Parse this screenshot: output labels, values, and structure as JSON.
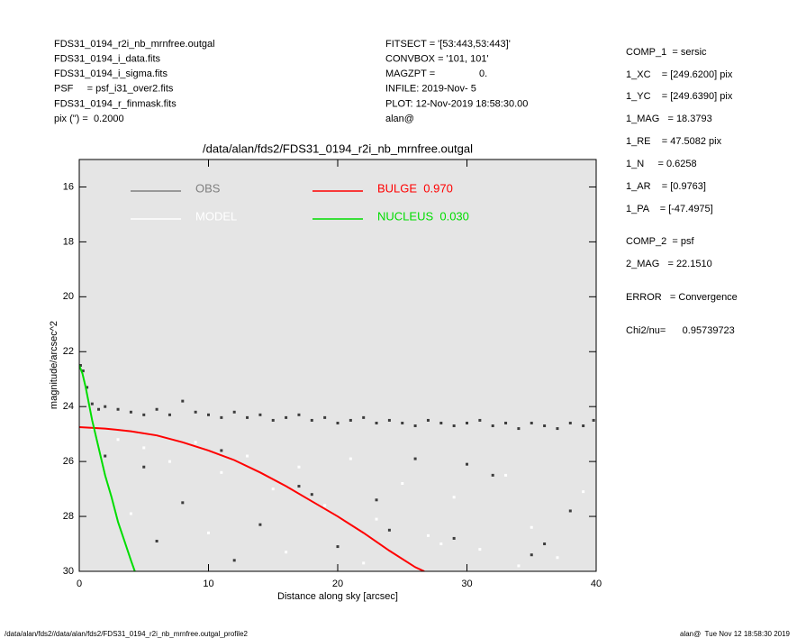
{
  "header": {
    "left": [
      "FDS31_0194_r2i_nb_mrnfree.outgal",
      "FDS31_0194_i_data.fits",
      "FDS31_0194_i_sigma.fits",
      "PSF     = psf_i31_over2.fits",
      "FDS31_0194_r_finmask.fits",
      "pix (\") =  0.2000"
    ],
    "middle": [
      "FITSECT = '[53:443,53:443]'",
      "CONVBOX = '101, 101'",
      "MAGZPT =                0.",
      "INFILE: 2019-Nov- 5",
      "PLOT: 12-Nov-2019 18:58:30.00",
      "alan@"
    ]
  },
  "info": [
    "COMP_1  = sersic",
    "1_XC    = [249.6200] pix",
    "1_YC    = [249.6390] pix",
    "1_MAG   = 18.3793",
    "1_RE    = 47.5082 pix",
    "1_N     = 0.6258",
    "1_AR    = [0.9763]",
    "1_PA    = [-47.4975]",
    "COMP_2  = psf",
    "2_MAG   = 22.1510",
    "ERROR   = Convergence",
    "Chi2/nu=      0.95739723"
  ],
  "footer": {
    "left": "/data/alan/fds2//data/alan/fds2/FDS31_0194_r2i_nb_mrnfree.outgal_profile2",
    "right": "alan@  Tue Nov 12 18:58:30 2019"
  },
  "chart_data": {
    "type": "scatter",
    "title": "/data/alan/fds2/FDS31_0194_r2i_nb_mrnfree.outgal",
    "xlabel": "Distance along sky [arcsec]",
    "ylabel": "magnitude/arcsec^2",
    "xlim": [
      0,
      40
    ],
    "xticks": [
      0,
      10,
      20,
      30,
      40
    ],
    "ylim": [
      15,
      30
    ],
    "yticks": [
      16,
      18,
      20,
      22,
      24,
      26,
      28,
      30
    ],
    "y_inverted": true,
    "background": "#e5e5e5",
    "series": [
      {
        "name": "OBS",
        "color": "#3c3c3c",
        "mark": "points",
        "x": [
          0.1,
          0.3,
          0.6,
          1,
          1.5,
          2,
          3,
          4,
          5,
          6,
          7,
          8,
          9,
          10,
          11,
          12,
          13,
          14,
          15,
          16,
          17,
          18,
          19,
          20,
          21,
          22,
          23,
          24,
          25,
          26,
          27,
          28,
          29,
          30,
          31,
          32,
          33,
          34,
          35,
          36,
          37,
          38,
          39,
          39.8,
          2,
          5,
          8,
          11,
          14,
          17,
          20,
          23,
          26,
          29,
          32,
          35,
          38,
          6,
          12,
          18,
          24,
          30,
          36
        ],
        "values": [
          22.5,
          22.7,
          23.3,
          23.9,
          24.1,
          24.0,
          24.1,
          24.2,
          24.3,
          24.1,
          24.3,
          23.8,
          24.2,
          24.3,
          24.4,
          24.2,
          24.4,
          24.3,
          24.5,
          24.4,
          24.3,
          24.5,
          24.4,
          24.6,
          24.5,
          24.4,
          24.6,
          24.5,
          24.6,
          24.7,
          24.5,
          24.6,
          24.7,
          24.6,
          24.5,
          24.7,
          24.6,
          24.8,
          24.6,
          24.7,
          24.8,
          24.6,
          24.7,
          24.5,
          25.8,
          26.2,
          27.5,
          25.6,
          28.3,
          26.9,
          29.1,
          27.4,
          25.9,
          28.8,
          26.5,
          29.4,
          27.8,
          28.9,
          29.6,
          27.2,
          28.5,
          26.1,
          29.0
        ]
      },
      {
        "name": "MODEL",
        "color": "#ffffff",
        "mark": "points",
        "x": [
          1,
          3,
          5,
          7,
          9,
          11,
          13,
          15,
          17,
          19,
          21,
          23,
          25,
          27,
          29,
          31,
          33,
          35,
          37,
          39,
          4,
          10,
          16,
          22,
          28,
          34
        ],
        "values": [
          24.8,
          25.2,
          25.5,
          26.0,
          25.3,
          26.4,
          25.8,
          27.0,
          26.2,
          27.6,
          25.9,
          28.1,
          26.8,
          28.7,
          27.3,
          29.2,
          26.5,
          28.4,
          29.5,
          27.1,
          27.9,
          28.6,
          29.3,
          29.7,
          29.0,
          29.8
        ]
      },
      {
        "name": "BULGE  0.970",
        "color": "#ff0000",
        "mark": "line",
        "x": [
          0,
          2,
          4,
          6,
          8,
          10,
          12,
          14,
          16,
          18,
          20,
          22,
          24,
          26,
          26.7
        ],
        "values": [
          24.75,
          24.8,
          24.9,
          25.05,
          25.3,
          25.6,
          25.95,
          26.4,
          26.9,
          27.45,
          28.0,
          28.6,
          29.25,
          29.85,
          30.0
        ]
      },
      {
        "name": "NUCLEUS  0.030",
        "color": "#00dd00",
        "mark": "line",
        "x": [
          0,
          0.25,
          0.5,
          0.75,
          1,
          1.5,
          2,
          2.5,
          3,
          3.5,
          4,
          4.3
        ],
        "values": [
          22.5,
          22.8,
          23.3,
          23.9,
          24.5,
          25.5,
          26.5,
          27.3,
          28.2,
          28.9,
          29.6,
          30.0
        ]
      }
    ]
  }
}
